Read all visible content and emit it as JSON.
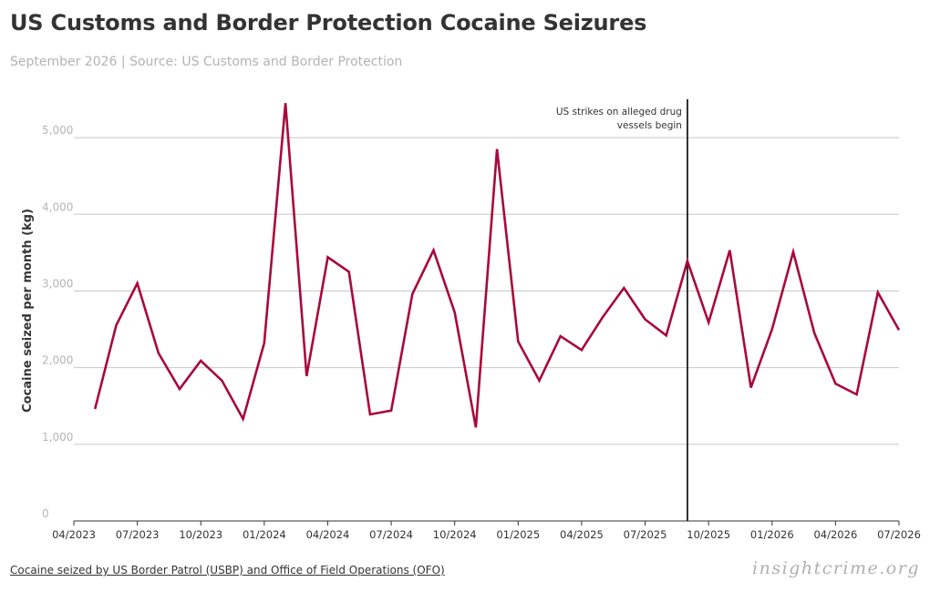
{
  "title": "US Customs and Border Protection Cocaine Seizures",
  "subtitle": "September 2026 | Source: US Customs and Border Protection",
  "footer_note": "Cocaine seized by US Border Patrol (USBP) and Office of Field Operations (OFO)",
  "brand": "insightcrime.org",
  "colors": {
    "line": "#a8093a",
    "grid": "#c8c8c8",
    "annotation_line": "#000000",
    "title": "#333333",
    "subtitle": "#b3b3b3"
  },
  "chart_data": {
    "type": "line",
    "title": "US Customs and Border Protection Cocaine Seizures",
    "subtitle": "September 2026 | Source: US Customs and Border Protection",
    "xlabel": "",
    "ylabel": "Cocaine seized per month (kg)",
    "grid": "horizontal",
    "legend": "none",
    "xlim": [
      "2023-04",
      "2026-07"
    ],
    "ylim": [
      0,
      5500
    ],
    "y_ticks": [
      0,
      1000,
      2000,
      3000,
      4000,
      5000
    ],
    "y_tick_labels": [
      "0",
      "1,000",
      "2,000",
      "3,000",
      "4,000",
      "5,000"
    ],
    "x_ticks": [
      "2023-04",
      "2023-07",
      "2023-10",
      "2024-01",
      "2024-04",
      "2024-07",
      "2024-10",
      "2025-01",
      "2025-04",
      "2025-07",
      "2025-10",
      "2026-01",
      "2026-04",
      "2026-07"
    ],
    "x_tick_labels": [
      "04/2023",
      "07/2023",
      "10/2023",
      "01/2024",
      "04/2024",
      "07/2024",
      "10/2024",
      "01/2025",
      "04/2025",
      "07/2025",
      "10/2025",
      "01/2026",
      "04/2026",
      "07/2026"
    ],
    "series": [
      {
        "x": [
          "2023-05",
          "2023-06",
          "2023-07",
          "2023-08",
          "2023-09",
          "2023-10",
          "2023-11",
          "2023-12",
          "2024-01",
          "2024-02",
          "2024-03",
          "2024-04",
          "2024-05",
          "2024-06",
          "2024-07",
          "2024-08",
          "2024-09",
          "2024-10",
          "2024-11",
          "2024-12",
          "2025-01",
          "2025-02",
          "2025-03",
          "2025-04",
          "2025-05",
          "2025-06",
          "2025-07",
          "2025-08",
          "2025-09",
          "2025-10",
          "2025-11",
          "2025-12",
          "2026-01",
          "2026-02",
          "2026-03",
          "2026-04",
          "2026-05",
          "2026-06",
          "2026-07"
        ],
        "values": [
          1460,
          2550,
          3100,
          2190,
          1720,
          2090,
          1830,
          1330,
          2320,
          5450,
          1890,
          3440,
          3250,
          1390,
          1440,
          2960,
          3530,
          2720,
          1220,
          4850,
          2340,
          1830,
          2410,
          2230,
          2660,
          3040,
          2630,
          2420,
          3390,
          2590,
          3530,
          1740,
          2500,
          3510,
          2450,
          1790,
          1650,
          2980,
          2490
        ]
      }
    ],
    "annotations": [
      {
        "type": "vertical-line",
        "x": "2025-09",
        "text_lines": [
          "US strikes on alleged drug",
          "vessels begin"
        ]
      }
    ]
  }
}
